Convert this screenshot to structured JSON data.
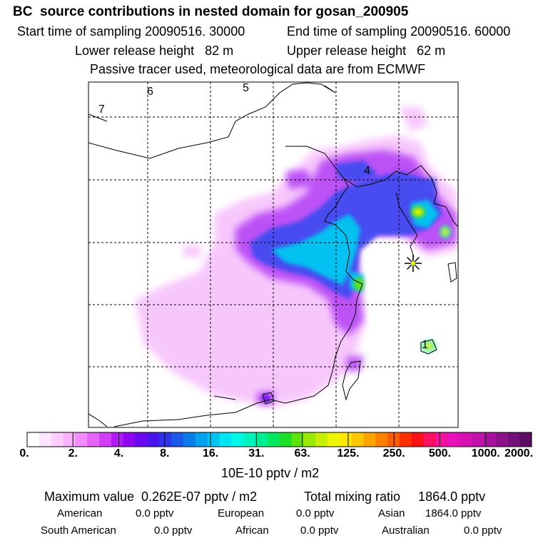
{
  "header": {
    "title": "BC  source contributions in nested domain for gosan_200905",
    "start": "Start time of sampling 20090516. 30000",
    "end": "End time of sampling 20090516. 60000",
    "lower": "Lower release height   82 m",
    "upper": "Upper release height   62 m",
    "tracer": "Passive tracer used, meteorological data are from ECMWF"
  },
  "map": {
    "region_labels": [
      "7",
      "6",
      "5",
      "4",
      "1"
    ],
    "receptor_marker": "star-marker"
  },
  "colorbar": {
    "tick_labels": [
      "0.",
      "2.",
      "4.",
      "8.",
      "16.",
      "31.",
      "63.",
      "125.",
      "250.",
      "500.",
      "1000.",
      "2000."
    ],
    "colors": [
      "#ffffff",
      "#fde6fe",
      "#fccdfe",
      "#f9b3fd",
      "#f28bfb",
      "#e464f8",
      "#d03ff6",
      "#b319f4",
      "#8f06f2",
      "#6a09ef",
      "#4a14ec",
      "#2f34ea",
      "#1958e8",
      "#0a7cea",
      "#05a0ee",
      "#00c4f2",
      "#00e4f5",
      "#00f8e6",
      "#00f4bd",
      "#00ef90",
      "#00e85f",
      "#1bde29",
      "#5ee20c",
      "#9ae806",
      "#c8ef04",
      "#eef502",
      "#fce800",
      "#fcc600",
      "#fca400",
      "#fc8100",
      "#fc5d00",
      "#fc3000",
      "#fc1018",
      "#fb0f5f",
      "#f610a0",
      "#e811bb",
      "#d612b5",
      "#c013aa",
      "#a8129c",
      "#8e118c",
      "#74107a",
      "#5c0d62"
    ],
    "unit": "10E-10 pptv / m2"
  },
  "footer": {
    "maximum": "Maximum value  0.262E-07 pptv / m2",
    "total": "Total mixing ratio     1864.0 pptv",
    "regions": [
      {
        "name": "American",
        "value": "0.0 pptv"
      },
      {
        "name": "European",
        "value": "0.0 pptv"
      },
      {
        "name": "Asian",
        "value": "1864.0 pptv"
      },
      {
        "name": "South American",
        "value": "0.0 pptv"
      },
      {
        "name": "African",
        "value": "0.0 pptv"
      },
      {
        "name": "Australian",
        "value": "0.0 pptv"
      }
    ]
  }
}
